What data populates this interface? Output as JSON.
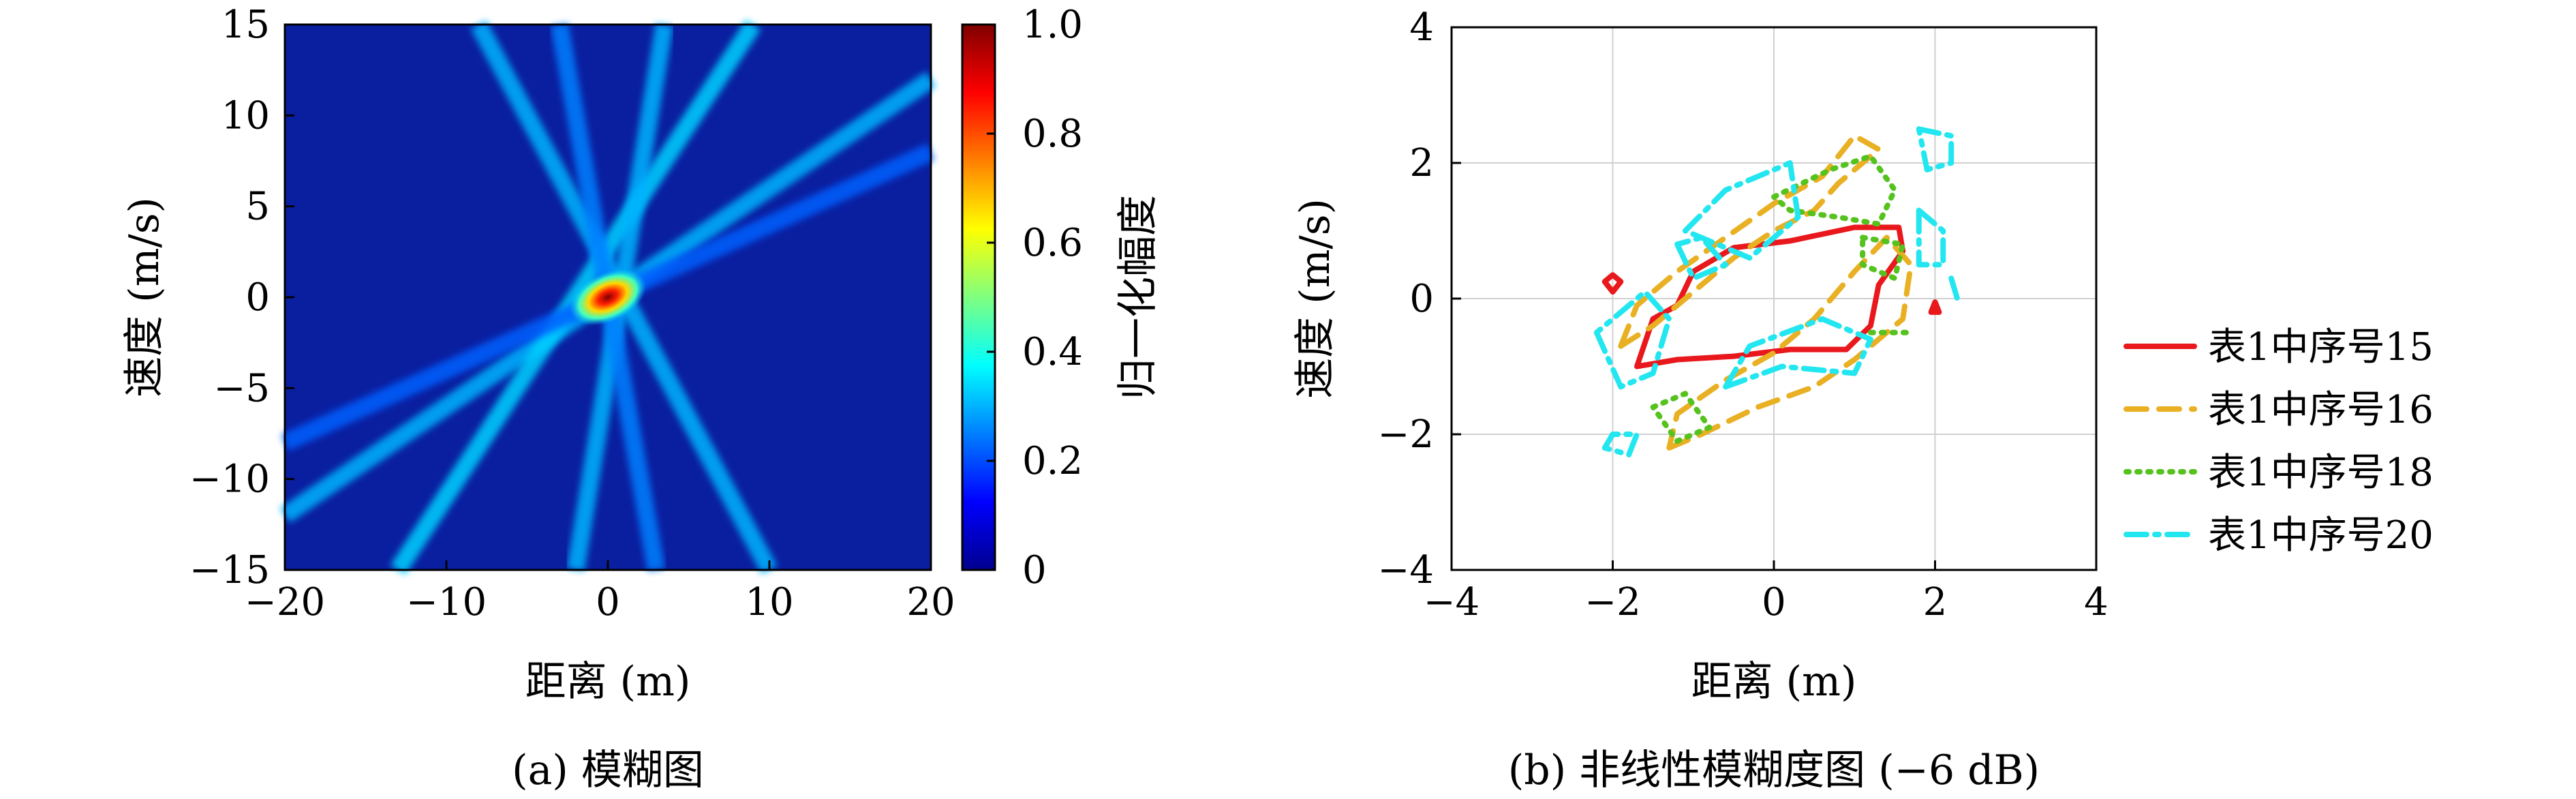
{
  "chart_data": [
    {
      "type": "heatmap",
      "caption": "(a) 模糊图",
      "xlabel": "距离 (m)",
      "ylabel": "速度 (m/s)",
      "xlim": [
        -20,
        20
      ],
      "ylim": [
        -15,
        15
      ],
      "xticks": [
        "−20",
        "−10",
        "0",
        "10",
        "20"
      ],
      "yticks": [
        "15",
        "10",
        "5",
        "0",
        "−5",
        "−10",
        "−15"
      ],
      "colorbar": {
        "label": "归一化幅度",
        "range": [
          0,
          1
        ],
        "ticks": [
          "1.0",
          "0.8",
          "0.6",
          "0.4",
          "0.2",
          "0"
        ],
        "colormap": "jet"
      },
      "peak": {
        "x": 0,
        "y": 0,
        "value": 1.0
      },
      "ridges": [
        {
          "x1": -20,
          "y1": -12,
          "x2": 20,
          "y2": 12,
          "value": 0.3
        },
        {
          "x1": -13,
          "y1": -15,
          "x2": 9,
          "y2": 15,
          "value": 0.33
        },
        {
          "x1": -2,
          "y1": -15,
          "x2": 3.5,
          "y2": 15,
          "value": 0.3
        },
        {
          "x1": -8,
          "y1": 15,
          "x2": 10,
          "y2": -15,
          "value": 0.3
        },
        {
          "x1": -3,
          "y1": 15,
          "x2": 3,
          "y2": -15,
          "value": 0.25
        },
        {
          "x1": -20,
          "y1": -8,
          "x2": 20,
          "y2": 8,
          "value": 0.22
        }
      ]
    },
    {
      "type": "line",
      "caption": "(b) 非线性模糊度图 (−6 dB)",
      "xlabel": "距离 (m)",
      "ylabel": "速度 (m/s)",
      "xlim": [
        -4,
        4
      ],
      "ylim": [
        -4,
        4
      ],
      "grid": true,
      "xticks": [
        "−4",
        "−2",
        "0",
        "2",
        "4"
      ],
      "yticks": [
        "4",
        "2",
        "0",
        "−2",
        "−4"
      ],
      "legend": "right",
      "series": [
        {
          "name": "表1中序号15",
          "color": "#e8181c",
          "style": "solid",
          "contours": [
            [
              [
                -1.7,
                -1
              ],
              [
                -1.2,
                -0.9
              ],
              [
                -0.5,
                -0.85
              ],
              [
                0.2,
                -0.75
              ],
              [
                0.9,
                -0.75
              ],
              [
                1.2,
                -0.4
              ],
              [
                1.3,
                0.2
              ],
              [
                1.6,
                0.7
              ],
              [
                1.55,
                1.05
              ],
              [
                1.0,
                1.05
              ],
              [
                0.2,
                0.85
              ],
              [
                -0.5,
                0.75
              ],
              [
                -1.0,
                0.4
              ],
              [
                -1.2,
                -0.1
              ],
              [
                -1.5,
                -0.3
              ],
              [
                -1.7,
                -1
              ]
            ],
            [
              [
                -2.1,
                0.25
              ],
              [
                -2.0,
                0.35
              ],
              [
                -1.9,
                0.25
              ],
              [
                -2.0,
                0.1
              ],
              [
                -2.1,
                0.25
              ]
            ],
            [
              [
                1.95,
                -0.2
              ],
              [
                2.0,
                -0.05
              ],
              [
                2.05,
                -0.2
              ],
              [
                1.95,
                -0.2
              ]
            ]
          ]
        },
        {
          "name": "表1中序号16",
          "color": "#e8b022",
          "style": "dashed",
          "contours": [
            [
              [
                -1.9,
                -0.7
              ],
              [
                -1.5,
                -0.4
              ],
              [
                -1.0,
                0.1
              ],
              [
                -0.5,
                0.6
              ],
              [
                0,
                1.0
              ],
              [
                0.5,
                1.3
              ],
              [
                0.8,
                1.7
              ],
              [
                1.3,
                2.2
              ],
              [
                1.0,
                2.4
              ],
              [
                0.6,
                1.8
              ],
              [
                0,
                1.4
              ],
              [
                -0.6,
                0.9
              ],
              [
                -1.2,
                0.4
              ],
              [
                -1.7,
                -0.1
              ],
              [
                -1.9,
                -0.7
              ]
            ],
            [
              [
                -1.3,
                -2.2
              ],
              [
                -0.9,
                -2.0
              ],
              [
                -0.2,
                -1.6
              ],
              [
                0.5,
                -1.3
              ],
              [
                1.0,
                -0.9
              ],
              [
                1.6,
                -0.3
              ],
              [
                1.7,
                0.5
              ],
              [
                1.4,
                0.9
              ],
              [
                1.0,
                0.4
              ],
              [
                0.5,
                -0.3
              ],
              [
                0,
                -0.8
              ],
              [
                -0.6,
                -1.2
              ],
              [
                -1.2,
                -1.7
              ],
              [
                -1.3,
                -2.2
              ]
            ]
          ]
        },
        {
          "name": "表1中序号18",
          "color": "#55c21d",
          "style": "dotted",
          "contours": [
            [
              [
                0,
                1.5
              ],
              [
                0.7,
                1.9
              ],
              [
                1.2,
                2.1
              ],
              [
                1.5,
                1.6
              ],
              [
                1.3,
                1.1
              ],
              [
                0.8,
                1.2
              ],
              [
                0.2,
                1.3
              ],
              [
                0,
                1.5
              ]
            ],
            [
              [
                1.1,
                0.9
              ],
              [
                1.6,
                0.8
              ],
              [
                1.5,
                0.3
              ],
              [
                1.1,
                0.5
              ],
              [
                1.1,
                0.9
              ]
            ],
            [
              [
                -1.5,
                -1.6
              ],
              [
                -1.1,
                -1.4
              ],
              [
                -0.8,
                -1.9
              ],
              [
                -1.2,
                -2.1
              ],
              [
                -1.5,
                -1.6
              ]
            ],
            [
              [
                1.2,
                -0.5
              ],
              [
                1.7,
                -0.5
              ]
            ]
          ]
        },
        {
          "name": "表1中序号20",
          "color": "#22e6f0",
          "style": "dashdot",
          "contours": [
            [
              [
                1.8,
                2.5
              ],
              [
                2.2,
                2.4
              ],
              [
                2.2,
                2.0
              ],
              [
                1.9,
                1.9
              ],
              [
                1.8,
                2.5
              ]
            ],
            [
              [
                -2.0,
                -2.0
              ],
              [
                -2.1,
                -2.2
              ],
              [
                -1.8,
                -2.3
              ],
              [
                -1.7,
                -2.0
              ],
              [
                -2.0,
                -2.0
              ]
            ],
            [
              [
                -2.2,
                -0.5
              ],
              [
                -1.9,
                -1.3
              ],
              [
                -1.5,
                -1.1
              ],
              [
                -1.3,
                -0.3
              ],
              [
                -1.6,
                0.1
              ],
              [
                -2.2,
                -0.5
              ]
            ],
            [
              [
                -1.1,
                1.0
              ],
              [
                -0.6,
                1.6
              ],
              [
                0.2,
                2.0
              ],
              [
                0.3,
                1.2
              ],
              [
                -0.3,
                0.6
              ],
              [
                -1.1,
                1.0
              ]
            ],
            [
              [
                -0.6,
                -1.3
              ],
              [
                0.1,
                -1.0
              ],
              [
                1.0,
                -1.1
              ],
              [
                1.2,
                -0.6
              ],
              [
                0.6,
                -0.3
              ],
              [
                -0.3,
                -0.7
              ],
              [
                -0.6,
                -1.3
              ]
            ],
            [
              [
                1.8,
                1.3
              ],
              [
                2.1,
                1.0
              ],
              [
                2.1,
                0.5
              ],
              [
                1.8,
                0.5
              ],
              [
                1.8,
                1.3
              ]
            ],
            [
              [
                -1.2,
                0.8
              ],
              [
                -1.0,
                0.3
              ],
              [
                -0.6,
                0.5
              ],
              [
                -0.9,
                0.9
              ],
              [
                -1.2,
                0.8
              ]
            ],
            [
              [
                2.2,
                0.3
              ],
              [
                2.3,
                -0.1
              ]
            ]
          ]
        }
      ]
    }
  ]
}
